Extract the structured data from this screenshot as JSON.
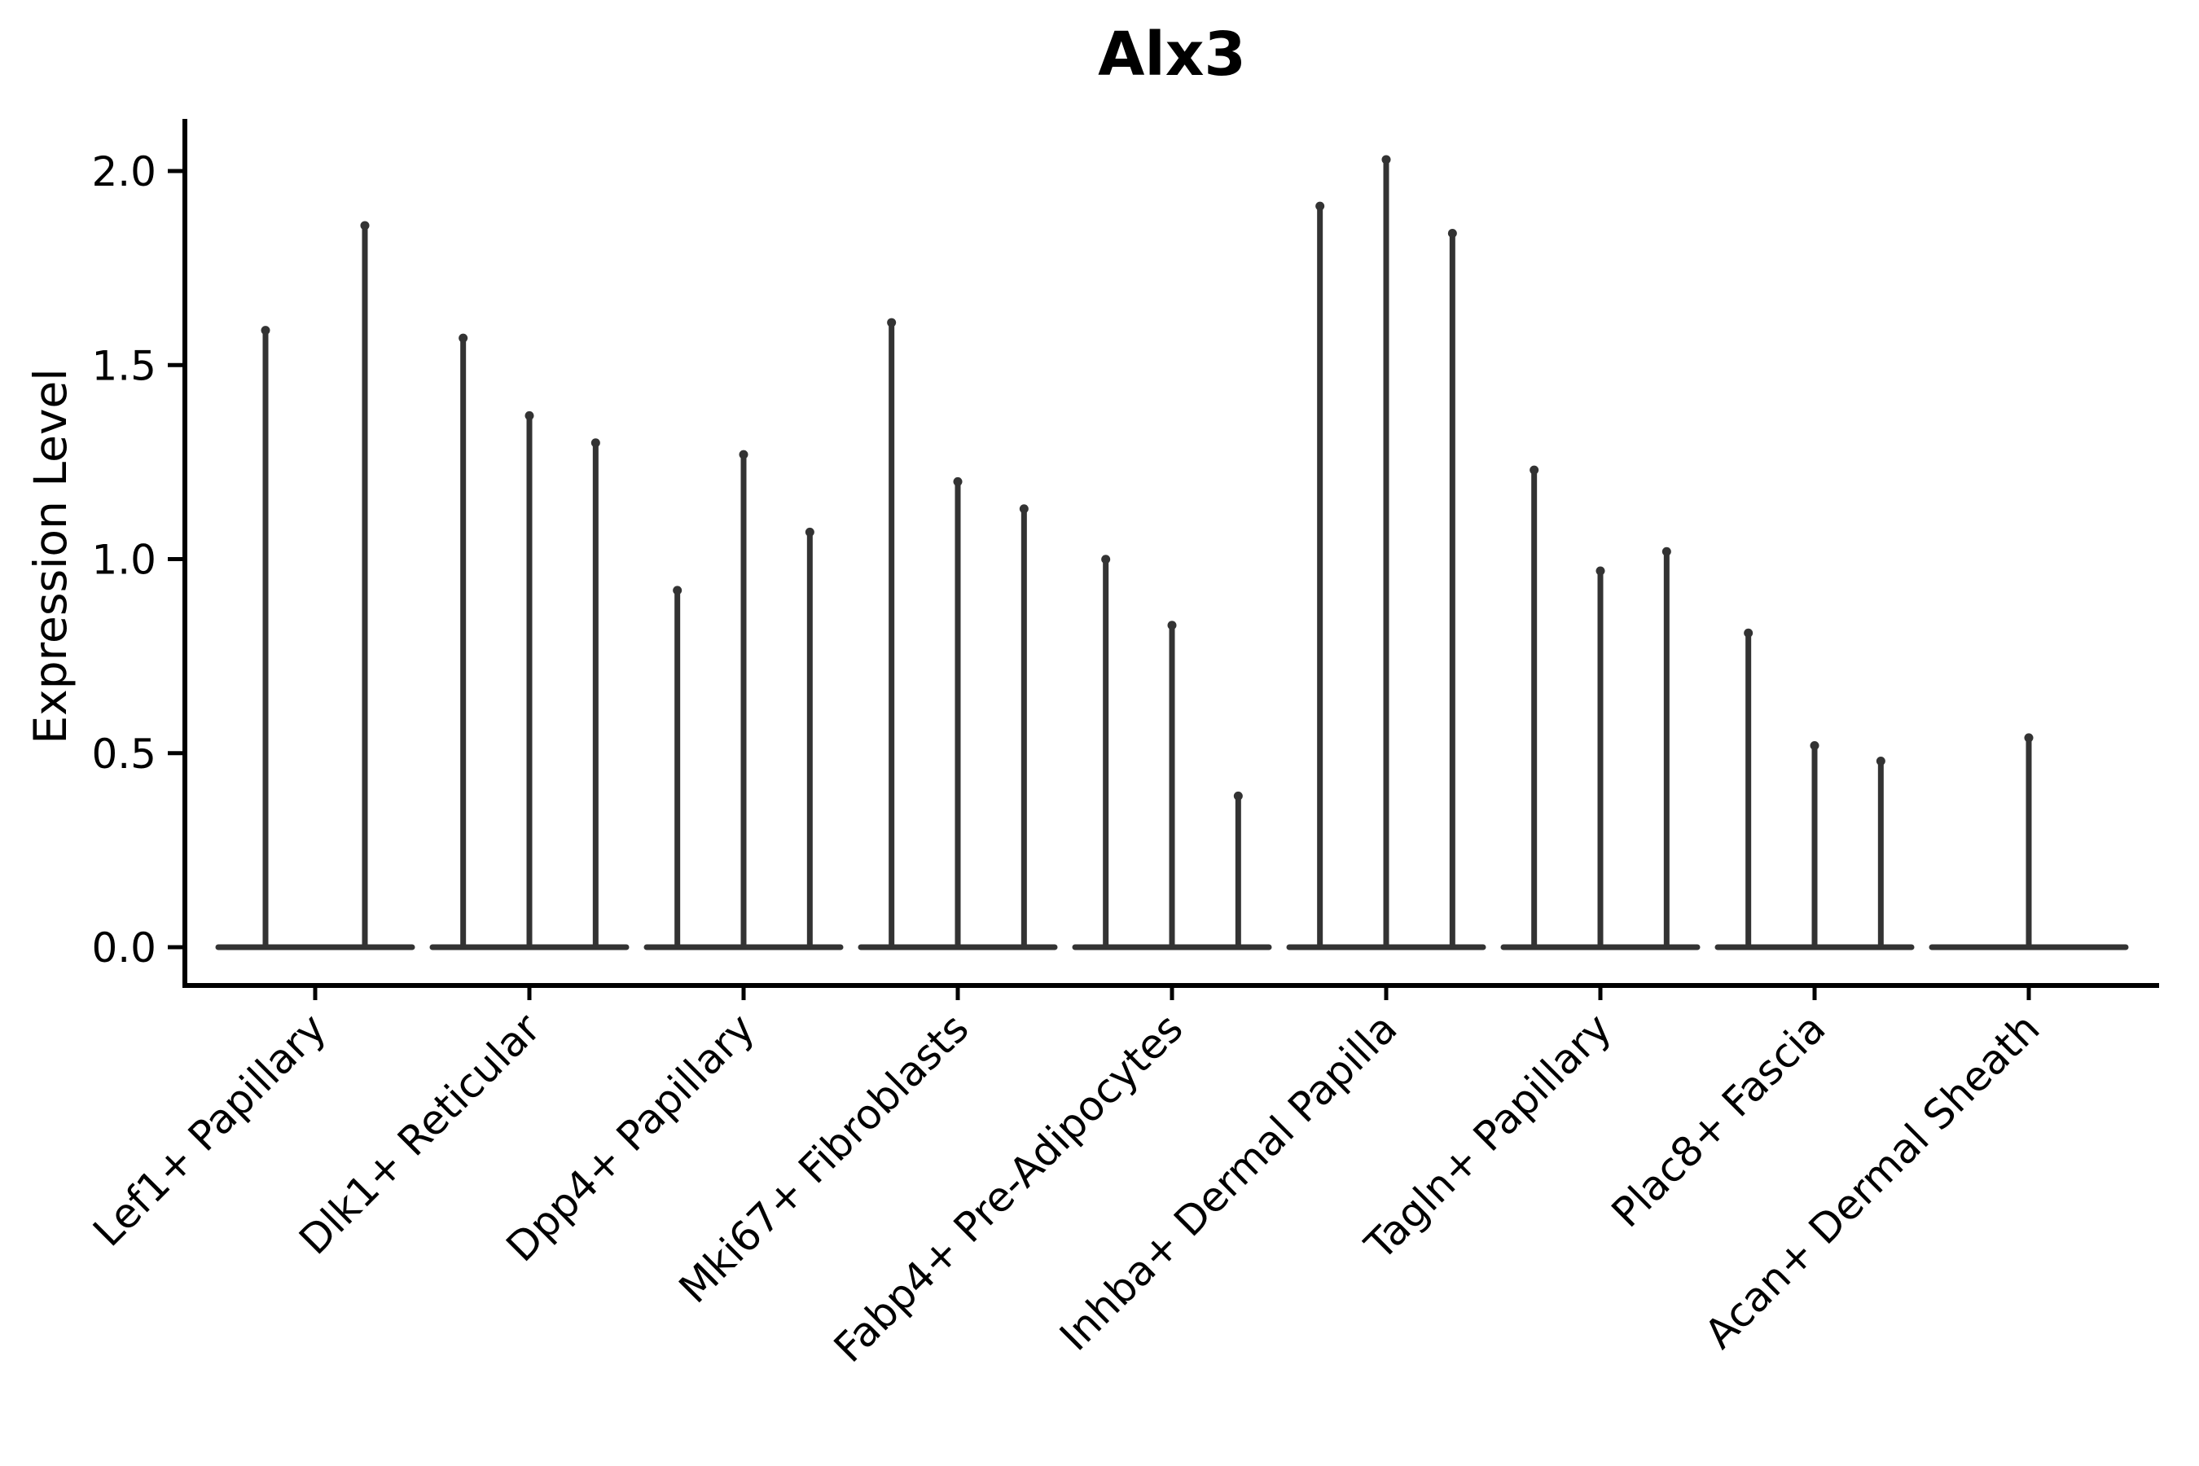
{
  "figure": {
    "title": "Alx3",
    "ylabel": "Expression Level"
  },
  "chart_data": {
    "type": "violin",
    "title": "Alx3",
    "xlabel": "",
    "ylabel": "Expression Level",
    "ylim": [
      -0.1,
      2.13
    ],
    "ytick_values": [
      0.0,
      0.5,
      1.0,
      1.5,
      2.0
    ],
    "ytick_labels": [
      "0.0",
      "0.5",
      "1.0",
      "1.5",
      "2.0"
    ],
    "grid": false,
    "legend": "none",
    "x_tick_rotation_deg": 45,
    "categories": [
      "Lef1+ Papillary",
      "Dlk1+ Reticular",
      "Dpp4+ Papillary",
      "Mki67+ Fibroblasts",
      "Fabp4+ Pre-Adipocytes",
      "Inhba+ Dermal Papilla",
      "Tagln+ Papillary",
      "Plac8+ Fascia",
      "Acan+ Dermal Sheath"
    ],
    "description": "Each category contains 1-3 needle-thin violins; nearly all mass sits at expression 0 (flat baseline) with a thin spike rising to the maximum expression value of each violin.",
    "groups": [
      {
        "category": "Lef1+ Papillary",
        "violin_maxima": [
          1.6,
          1.87
        ]
      },
      {
        "category": "Dlk1+ Reticular",
        "violin_maxima": [
          1.58,
          1.38,
          1.31
        ]
      },
      {
        "category": "Dpp4+ Papillary",
        "violin_maxima": [
          0.93,
          1.28,
          1.08
        ]
      },
      {
        "category": "Mki67+ Fibroblasts",
        "violin_maxima": [
          1.62,
          1.21,
          1.14
        ]
      },
      {
        "category": "Fabp4+ Pre-Adipocytes",
        "violin_maxima": [
          1.01,
          0.84,
          0.4
        ]
      },
      {
        "category": "Inhba+ Dermal Papilla",
        "violin_maxima": [
          1.92,
          2.04,
          1.85
        ]
      },
      {
        "category": "Tagln+ Papillary",
        "violin_maxima": [
          1.24,
          0.98,
          1.03
        ]
      },
      {
        "category": "Plac8+ Fascia",
        "violin_maxima": [
          0.82,
          0.53,
          0.49
        ]
      },
      {
        "category": "Acan+ Dermal Sheath",
        "violin_maxima": [
          0.55
        ]
      }
    ],
    "colors": {
      "violin": "#333333",
      "axis": "#000000",
      "text": "#000000",
      "background": "#ffffff"
    }
  }
}
